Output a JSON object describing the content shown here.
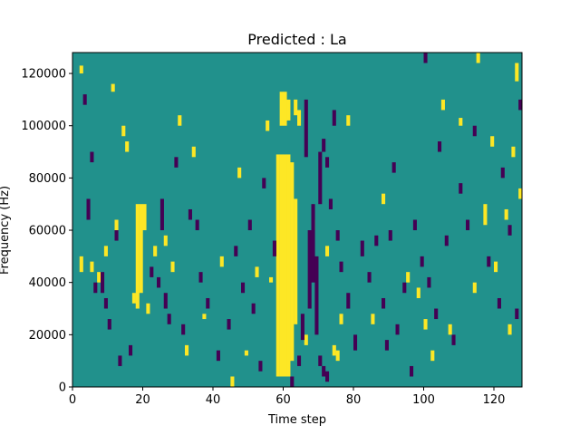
{
  "chart_data": {
    "type": "heatmap",
    "title": "Predicted : La",
    "xlabel": "Time step",
    "ylabel": "Frequency (Hz)",
    "xlim": [
      0,
      128
    ],
    "ylim": [
      0,
      128000
    ],
    "x_ticks": [
      0,
      20,
      40,
      60,
      80,
      100,
      120
    ],
    "y_ticks": [
      0,
      20000,
      40000,
      60000,
      80000,
      100000,
      120000
    ],
    "x_tick_labels": [
      "0",
      "20",
      "40",
      "60",
      "80",
      "100",
      "120"
    ],
    "y_tick_labels": [
      "0",
      "20000",
      "40000",
      "60000",
      "80000",
      "100000",
      "120000"
    ],
    "grid": false,
    "legend": "none",
    "colors": {
      "background": "#21918c",
      "high": "#fde725",
      "low": "#440154"
    },
    "value_range": [
      0,
      1
    ],
    "background_value": 0.5,
    "cell_width": 1,
    "cell_height": 2000,
    "cells": {
      "high": [
        [
          58,
          4000,
          89000
        ],
        [
          59,
          4000,
          89000
        ],
        [
          60,
          4000,
          89000
        ],
        [
          61,
          4000,
          89000
        ],
        [
          62,
          10000,
          86000
        ],
        [
          63,
          24000,
          72000
        ],
        [
          59,
          100000,
          113000
        ],
        [
          60,
          100000,
          113000
        ],
        [
          61,
          102000,
          110000
        ],
        [
          63,
          104000,
          110000
        ],
        [
          64,
          100000,
          106000
        ],
        [
          18,
          30000,
          70000
        ],
        [
          19,
          36000,
          70000
        ],
        [
          20,
          60000,
          70000
        ],
        [
          17,
          32000,
          36000
        ],
        [
          21,
          28000,
          32000
        ],
        [
          2,
          44000,
          50000
        ],
        [
          2,
          120000,
          123000
        ],
        [
          11,
          113000,
          116000
        ],
        [
          14,
          96000,
          100000
        ],
        [
          26,
          54000,
          58000
        ],
        [
          30,
          100000,
          104000
        ],
        [
          37,
          26000,
          28000
        ],
        [
          45,
          0,
          4000
        ],
        [
          52,
          42000,
          46000
        ],
        [
          56,
          40000,
          42000
        ],
        [
          72,
          50000,
          54000
        ],
        [
          75,
          10000,
          14000
        ],
        [
          76,
          24000,
          28000
        ],
        [
          78,
          100000,
          104000
        ],
        [
          95,
          40000,
          44000
        ],
        [
          100,
          22000,
          26000
        ],
        [
          105,
          106000,
          110000
        ],
        [
          110,
          100000,
          103000
        ],
        [
          115,
          124000,
          128000
        ],
        [
          117,
          62000,
          70000
        ],
        [
          119,
          92000,
          96000
        ],
        [
          123,
          64000,
          68000
        ],
        [
          125,
          88000,
          92000
        ],
        [
          126,
          117000,
          124000
        ],
        [
          127,
          72000,
          76000
        ],
        [
          5,
          44000,
          48000
        ],
        [
          7,
          40000,
          44000
        ],
        [
          9,
          50000,
          54000
        ],
        [
          12,
          60000,
          64000
        ],
        [
          15,
          90000,
          94000
        ],
        [
          23,
          50000,
          54000
        ],
        [
          28,
          44000,
          48000
        ],
        [
          32,
          12000,
          16000
        ],
        [
          34,
          88000,
          92000
        ],
        [
          42,
          46000,
          50000
        ],
        [
          47,
          80000,
          84000
        ],
        [
          49,
          12000,
          14000
        ],
        [
          55,
          98000,
          102000
        ],
        [
          66,
          16000,
          20000
        ],
        [
          68,
          60000,
          64000
        ],
        [
          74,
          12000,
          16000
        ],
        [
          85,
          24000,
          28000
        ],
        [
          88,
          70000,
          74000
        ],
        [
          98,
          34000,
          38000
        ],
        [
          102,
          10000,
          14000
        ],
        [
          107,
          20000,
          24000
        ],
        [
          114,
          36000,
          40000
        ],
        [
          120,
          44000,
          48000
        ],
        [
          124,
          20000,
          24000
        ]
      ],
      "low": [
        [
          66,
          88000,
          110000
        ],
        [
          67,
          30000,
          60000
        ],
        [
          68,
          40000,
          70000
        ],
        [
          69,
          20000,
          50000
        ],
        [
          70,
          70000,
          90000
        ],
        [
          65,
          18000,
          28000
        ],
        [
          71,
          90000,
          95000
        ],
        [
          72,
          84000,
          88000
        ],
        [
          73,
          68000,
          72000
        ],
        [
          74,
          100000,
          106000
        ],
        [
          75,
          56000,
          60000
        ],
        [
          76,
          44000,
          48000
        ],
        [
          25,
          60000,
          72000
        ],
        [
          26,
          30000,
          36000
        ],
        [
          27,
          24000,
          28000
        ],
        [
          29,
          84000,
          88000
        ],
        [
          3,
          108000,
          112000
        ],
        [
          4,
          64000,
          72000
        ],
        [
          5,
          86000,
          90000
        ],
        [
          6,
          36000,
          40000
        ],
        [
          8,
          36000,
          44000
        ],
        [
          9,
          30000,
          34000
        ],
        [
          10,
          22000,
          26000
        ],
        [
          12,
          56000,
          60000
        ],
        [
          13,
          8000,
          12000
        ],
        [
          16,
          12000,
          16000
        ],
        [
          22,
          42000,
          46000
        ],
        [
          24,
          38000,
          42000
        ],
        [
          31,
          20000,
          24000
        ],
        [
          33,
          64000,
          68000
        ],
        [
          35,
          60000,
          64000
        ],
        [
          36,
          40000,
          44000
        ],
        [
          38,
          30000,
          34000
        ],
        [
          41,
          10000,
          14000
        ],
        [
          44,
          22000,
          26000
        ],
        [
          46,
          50000,
          54000
        ],
        [
          48,
          36000,
          40000
        ],
        [
          50,
          60000,
          64000
        ],
        [
          51,
          28000,
          32000
        ],
        [
          53,
          6000,
          10000
        ],
        [
          54,
          76000,
          80000
        ],
        [
          57,
          50000,
          56000
        ],
        [
          62,
          0,
          4000
        ],
        [
          64,
          8000,
          12000
        ],
        [
          70,
          8000,
          12000
        ],
        [
          71,
          4000,
          8000
        ],
        [
          72,
          2000,
          6000
        ],
        [
          78,
          30000,
          36000
        ],
        [
          80,
          14000,
          20000
        ],
        [
          82,
          50000,
          56000
        ],
        [
          84,
          40000,
          44000
        ],
        [
          86,
          54000,
          58000
        ],
        [
          88,
          30000,
          34000
        ],
        [
          89,
          14000,
          18000
        ],
        [
          90,
          56000,
          60000
        ],
        [
          91,
          82000,
          86000
        ],
        [
          92,
          20000,
          24000
        ],
        [
          94,
          36000,
          40000
        ],
        [
          96,
          4000,
          8000
        ],
        [
          97,
          60000,
          64000
        ],
        [
          99,
          46000,
          50000
        ],
        [
          101,
          38000,
          42000
        ],
        [
          103,
          26000,
          30000
        ],
        [
          104,
          90000,
          94000
        ],
        [
          106,
          54000,
          58000
        ],
        [
          108,
          16000,
          20000
        ],
        [
          110,
          74000,
          78000
        ],
        [
          112,
          60000,
          64000
        ],
        [
          114,
          96000,
          100000
        ],
        [
          118,
          46000,
          50000
        ],
        [
          121,
          30000,
          34000
        ],
        [
          122,
          80000,
          84000
        ],
        [
          124,
          58000,
          62000
        ],
        [
          126,
          26000,
          30000
        ],
        [
          127,
          106000,
          110000
        ],
        [
          100,
          124000,
          128000
        ]
      ]
    }
  }
}
